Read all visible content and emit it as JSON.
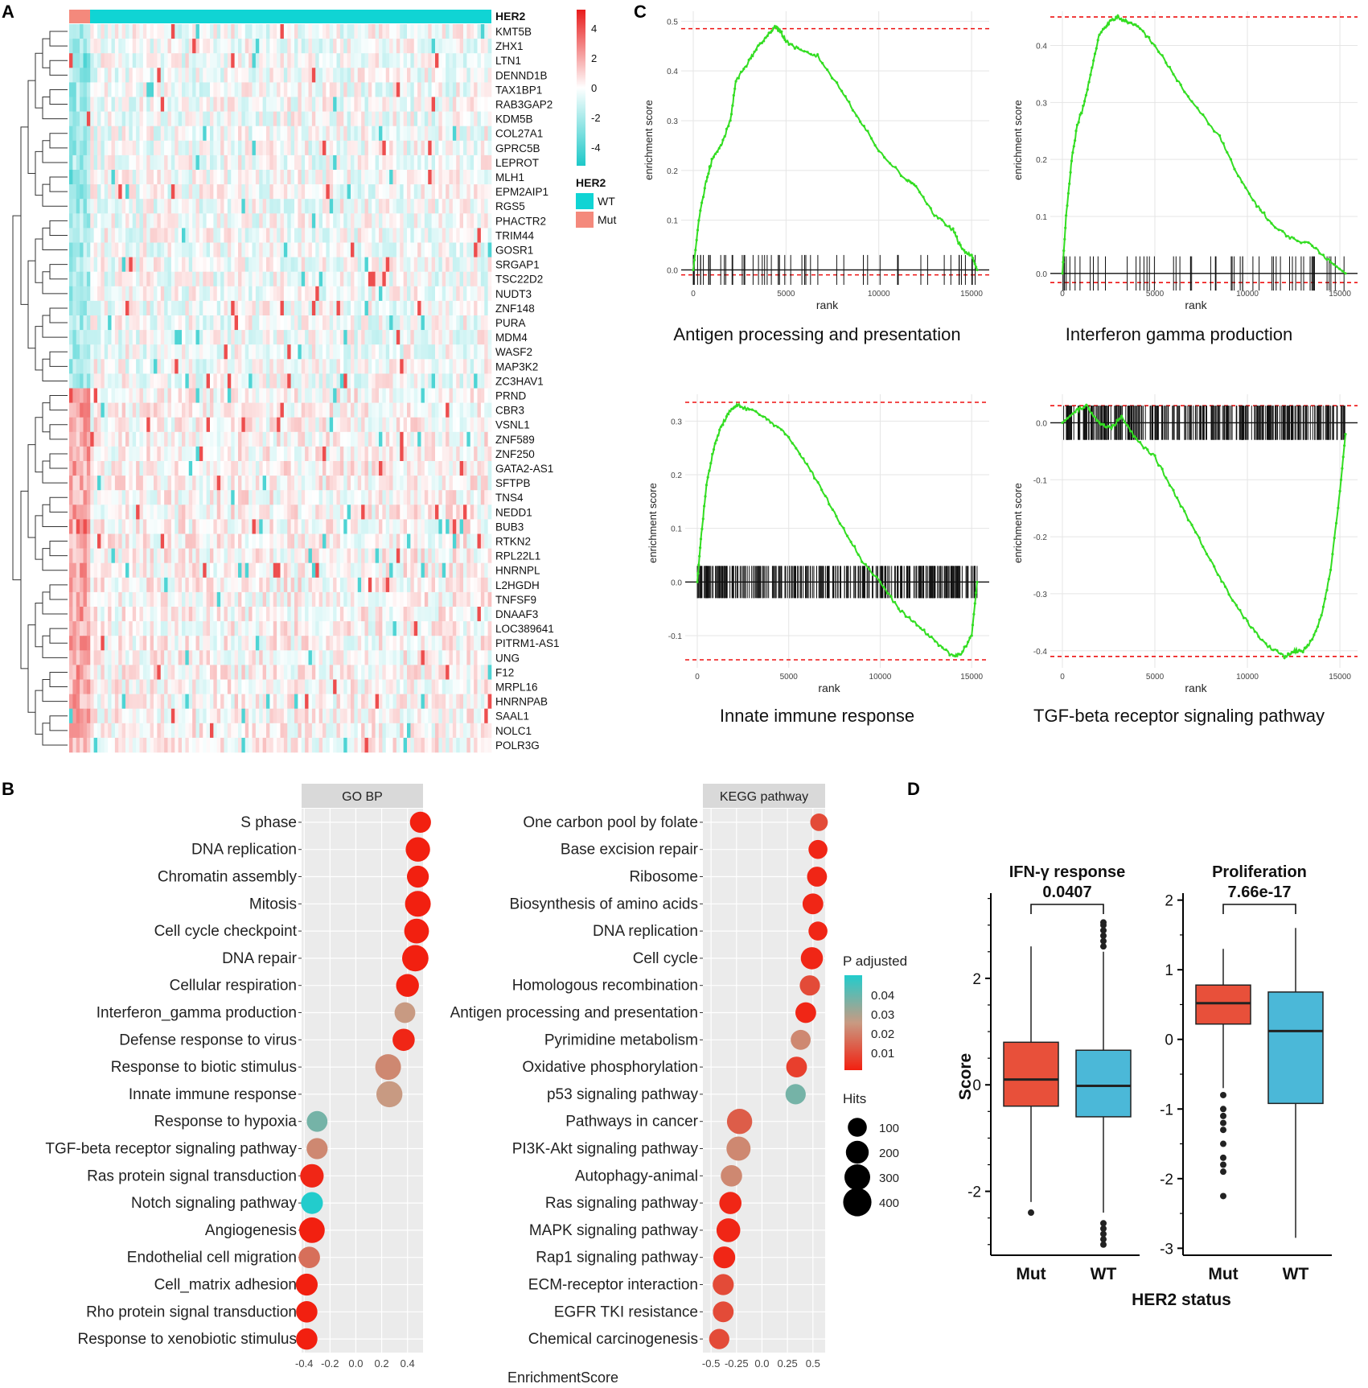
{
  "panel_labels": {
    "a": "A",
    "b": "B",
    "c": "C",
    "d": "D"
  },
  "colors": {
    "hm_low": "#1cc8c8",
    "hm_high": "#e81c1c",
    "hm_mid": "#ffffff",
    "wt": "#10d4d4",
    "mut": "#f4897c",
    "gsea_line": "#33dd22",
    "gsea_bound": "#ee1111",
    "dot_low_p": "#f22010",
    "dot_mid_p": "#c89a82",
    "dot_high_p": "#22cccc",
    "grid_bg": "#ebebeb",
    "box_mut": "#e8503a",
    "box_wt": "#4bb8d8"
  },
  "chart_data": [
    {
      "type": "heatmap",
      "panel": "A",
      "title": "",
      "annotation_label": "HER2",
      "genes": [
        "KMT5B",
        "ZHX1",
        "LTN1",
        "DENND1B",
        "TAX1BP1",
        "RAB3GAP2",
        "KDM5B",
        "COL27A1",
        "GPRC5B",
        "LEPROT",
        "MLH1",
        "EPM2AIP1",
        "RGS5",
        "PHACTR2",
        "TRIM44",
        "GOSR1",
        "SRGAP1",
        "TSC22D2",
        "NUDT3",
        "ZNF148",
        "PURA",
        "MDM4",
        "WASF2",
        "MAP3K2",
        "ZC3HAV1",
        "PRND",
        "CBR3",
        "VSNL1",
        "ZNF589",
        "ZNF250",
        "GATA2-AS1",
        "SFTPB",
        "TNS4",
        "NEDD1",
        "BUB3",
        "RTKN2",
        "RPL22L1",
        "HNRNPL",
        "L2HGDH",
        "TNFSF9",
        "DNAAF3",
        "LOC389641",
        "PITRM1-AS1",
        "UNG",
        "F12",
        "MRPL16",
        "HNRNPAB",
        "SAAL1",
        "NOLC1",
        "POLR3G"
      ],
      "colorbar_ticks": [
        "4",
        "2",
        "0",
        "-2",
        "-4"
      ],
      "legend_title": "HER2",
      "legend_items": [
        "WT",
        "Mut"
      ]
    },
    {
      "type": "scatter",
      "panel": "B",
      "facets": [
        {
          "strip": "GO BP",
          "terms": [
            "S phase",
            "DNA replication",
            "Chromatin assembly",
            "Mitosis",
            "Cell cycle checkpoint",
            "DNA repair",
            "Cellular respiration",
            "Interferon_gamma production",
            "Defense response to virus",
            "Response to biotic stimulus",
            "Innate immune response",
            "Response to hypoxia",
            "TGF-beta receptor signaling pathway",
            "Ras protein signal transduction",
            "Notch signaling pathway",
            "Angiogenesis",
            "Endothelial cell migration",
            "Cell_matrix adhesion",
            "Rho protein signal transduction",
            "Response to xenobiotic stimulus"
          ],
          "x": [
            0.5,
            0.48,
            0.48,
            0.48,
            0.47,
            0.46,
            0.4,
            0.38,
            0.37,
            0.25,
            0.26,
            -0.3,
            -0.3,
            -0.34,
            -0.34,
            -0.34,
            -0.36,
            -0.38,
            -0.38,
            -0.38
          ],
          "p_adjusted": [
            0.005,
            0.004,
            0.004,
            0.003,
            0.004,
            0.003,
            0.005,
            0.025,
            0.006,
            0.022,
            0.025,
            0.035,
            0.022,
            0.006,
            0.045,
            0.005,
            0.018,
            0.004,
            0.004,
            0.004
          ],
          "hits": [
            150,
            250,
            170,
            300,
            260,
            320,
            200,
            140,
            180,
            300,
            310,
            140,
            150,
            220,
            170,
            290,
            160,
            170,
            160,
            160
          ],
          "xticks": [
            "-0.4",
            "-0.2",
            "0.0",
            "0.2",
            "0.4"
          ],
          "xlim": [
            -0.42,
            0.52
          ]
        },
        {
          "strip": "KEGG pathway",
          "terms": [
            "One carbon pool by folate",
            "Base excision repair",
            "Ribosome",
            "Biosynthesis of amino acids",
            "DNA replication",
            "Cell cycle",
            "Homologous recombination",
            "Antigen processing and presentation",
            "Pyrimidine metabolism",
            "Oxidative phosphorylation",
            "p53 signaling pathway",
            "Pathways in cancer",
            "PI3K-Akt signaling pathway",
            "Autophagy-animal",
            "Ras signaling pathway",
            "MAPK signaling pathway",
            "Rap1 signaling pathway",
            "ECM-receptor interaction",
            "EGFR TKI resistance",
            "Chemical carcinogenesis"
          ],
          "x": [
            0.56,
            0.55,
            0.54,
            0.5,
            0.55,
            0.49,
            0.47,
            0.43,
            0.38,
            0.34,
            0.33,
            -0.22,
            -0.23,
            -0.3,
            -0.31,
            -0.33,
            -0.37,
            -0.38,
            -0.38,
            -0.42
          ],
          "p_adjusted": [
            0.012,
            0.006,
            0.006,
            0.006,
            0.006,
            0.006,
            0.012,
            0.006,
            0.022,
            0.01,
            0.035,
            0.015,
            0.022,
            0.022,
            0.006,
            0.006,
            0.006,
            0.012,
            0.012,
            0.012
          ],
          "hits": [
            70,
            100,
            120,
            140,
            100,
            180,
            130,
            140,
            120,
            140,
            130,
            280,
            240,
            160,
            180,
            230,
            170,
            150,
            140,
            130
          ],
          "xticks": [
            "-0.5",
            "-0.25",
            "0.0",
            "0.25",
            "0.5"
          ],
          "xlim": [
            -0.58,
            0.62
          ]
        }
      ],
      "xlabel": "EnrichmentScore",
      "legend_color_title": "P adjusted",
      "legend_color_ticks": [
        "0.04",
        "0.03",
        "0.02",
        "0.01"
      ],
      "legend_size_title": "Hits",
      "legend_size_ticks": [
        "100",
        "200",
        "300",
        "400"
      ]
    },
    {
      "type": "line",
      "panel": "C",
      "xlabel": "rank",
      "ylabel": "enrichment score",
      "xticks": [
        "0",
        "5000",
        "10000",
        "15000"
      ],
      "plots": [
        {
          "title": "Antigen processing and presentation",
          "ylim": [
            -0.03,
            0.52
          ],
          "yticks": [
            "0.0",
            "0.1",
            "0.2",
            "0.3",
            "0.4",
            "0.5"
          ],
          "x": [
            0,
            300,
            700,
            1000,
            1500,
            2000,
            2300,
            3000,
            3500,
            4000,
            4400,
            4700,
            5000,
            5800,
            6700,
            8000,
            9000,
            10000,
            11500,
            12000,
            13000,
            14000,
            14500,
            15000,
            15300
          ],
          "y": [
            0.0,
            0.1,
            0.18,
            0.22,
            0.25,
            0.3,
            0.38,
            0.42,
            0.45,
            0.47,
            0.49,
            0.48,
            0.46,
            0.44,
            0.43,
            0.36,
            0.3,
            0.24,
            0.18,
            0.17,
            0.11,
            0.08,
            0.04,
            0.03,
            0.0
          ],
          "upper": 0.485,
          "lower": -0.01,
          "hits_band": [
            0.03,
            -0.03
          ]
        },
        {
          "title": "Interferon gamma production",
          "ylim": [
            -0.02,
            0.46
          ],
          "yticks": [
            "0.0",
            "0.1",
            "0.2",
            "0.3",
            "0.4"
          ],
          "x": [
            0,
            200,
            500,
            800,
            1200,
            1600,
            2000,
            2500,
            3000,
            3600,
            4200,
            5000,
            6000,
            7000,
            8500,
            9500,
            10500,
            11500,
            12500,
            13500,
            14500,
            15300
          ],
          "y": [
            0.0,
            0.1,
            0.2,
            0.26,
            0.3,
            0.36,
            0.42,
            0.44,
            0.45,
            0.44,
            0.43,
            0.4,
            0.35,
            0.3,
            0.24,
            0.17,
            0.12,
            0.08,
            0.06,
            0.05,
            0.02,
            0.0
          ],
          "upper": 0.45,
          "lower": -0.016,
          "hits_band": [
            0.03,
            -0.03
          ]
        },
        {
          "title": "Innate immune response",
          "ylim": [
            -0.16,
            0.35
          ],
          "yticks": [
            "-0.1",
            "0.0",
            "0.1",
            "0.2",
            "0.3"
          ],
          "x": [
            0,
            200,
            500,
            900,
            1300,
            1800,
            2200,
            3000,
            4000,
            5000,
            6000,
            7000,
            8000,
            9000,
            10000,
            11000,
            12000,
            13000,
            14000,
            14500,
            15000,
            15300
          ],
          "y": [
            0.0,
            0.08,
            0.18,
            0.25,
            0.29,
            0.32,
            0.33,
            0.32,
            0.3,
            0.27,
            0.22,
            0.16,
            0.1,
            0.04,
            0.0,
            -0.05,
            -0.08,
            -0.11,
            -0.14,
            -0.13,
            -0.1,
            0.0
          ],
          "upper": 0.335,
          "lower": -0.145,
          "hits_band": [
            0.03,
            -0.03
          ]
        },
        {
          "title": "TGF-beta receptor signaling pathway",
          "ylim": [
            -0.43,
            0.05
          ],
          "yticks": [
            "0.0",
            "-0.1",
            "-0.2",
            "-0.3",
            "-0.4"
          ],
          "x": [
            0,
            700,
            1300,
            2000,
            2600,
            3200,
            4000,
            5000,
            6000,
            7000,
            8000,
            9000,
            10000,
            11000,
            12000,
            12500,
            13000,
            13500,
            14000,
            14500,
            15000,
            15300
          ],
          "y": [
            0.0,
            0.02,
            0.03,
            0.0,
            -0.01,
            0.01,
            -0.03,
            -0.06,
            -0.12,
            -0.18,
            -0.24,
            -0.3,
            -0.35,
            -0.39,
            -0.41,
            -0.4,
            -0.4,
            -0.38,
            -0.34,
            -0.26,
            -0.12,
            -0.02
          ],
          "upper": 0.03,
          "lower": -0.41,
          "hits_band": [
            0.03,
            -0.03
          ]
        }
      ]
    },
    {
      "type": "box",
      "panel": "D",
      "ylabel": "Score",
      "xlabel": "HER2 status",
      "categories": [
        "Mut",
        "WT"
      ],
      "plots": [
        {
          "title": "IFN-γ response",
          "pvalue": "0.0407",
          "ylim": [
            -3.2,
            3.6
          ],
          "yticks": [
            -2,
            0,
            2
          ],
          "boxes": [
            {
              "q1": -0.4,
              "median": 0.1,
              "q3": 0.8,
              "lo": -2.2,
              "hi": 2.6,
              "outliers": [
                -2.4
              ]
            },
            {
              "q1": -0.6,
              "median": -0.02,
              "q3": 0.65,
              "lo": -2.4,
              "hi": 2.5,
              "outliers": [
                2.6,
                2.7,
                2.8,
                2.9,
                3.0,
                3.05,
                -2.6,
                -2.7,
                -2.8,
                -2.9,
                -3.0
              ]
            }
          ]
        },
        {
          "title": "Proliferation",
          "pvalue": "7.66e-17",
          "ylim": [
            -3.1,
            2.1
          ],
          "yticks": [
            -3,
            -2,
            -1,
            0,
            1,
            2
          ],
          "boxes": [
            {
              "q1": 0.22,
              "median": 0.52,
              "q3": 0.78,
              "lo": -0.7,
              "hi": 1.3,
              "outliers": [
                -0.8,
                -1.0,
                -1.1,
                -1.2,
                -1.3,
                -1.5,
                -1.7,
                -1.8,
                -1.9,
                -2.25
              ]
            },
            {
              "q1": -0.92,
              "median": 0.12,
              "q3": 0.68,
              "lo": -2.85,
              "hi": 1.6,
              "outliers": []
            }
          ]
        }
      ]
    }
  ]
}
